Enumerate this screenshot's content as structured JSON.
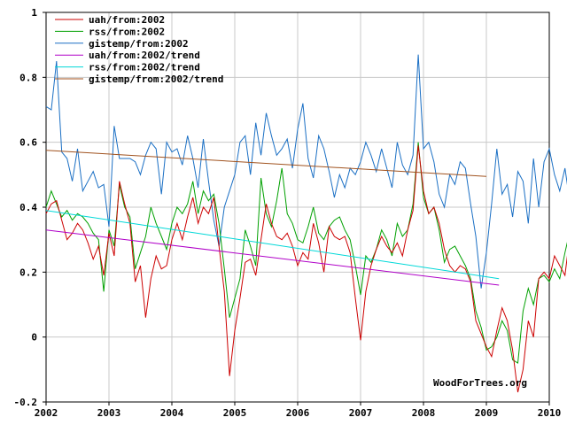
{
  "chart_data": {
    "type": "line",
    "xlim": [
      2002,
      2010
    ],
    "ylim": [
      -0.2,
      1.0
    ],
    "xticks": [
      "2002",
      "2003",
      "2004",
      "2005",
      "2006",
      "2007",
      "2008",
      "2009",
      "2010"
    ],
    "yticks": [
      "-0.2",
      "0",
      "0.2",
      "0.4",
      "0.6",
      "0.8",
      "1"
    ],
    "xtick_values": [
      2002,
      2003,
      2004,
      2005,
      2006,
      2007,
      2008,
      2009,
      2010
    ],
    "ytick_values": [
      -0.2,
      0,
      0.2,
      0.4,
      0.6,
      0.8,
      1.0
    ],
    "grid": true,
    "legend_position": "top-left",
    "credit": "WoodForTrees.org",
    "series": [
      {
        "name": "uah/from:2002",
        "color": "#cc0000",
        "kind": "monthly",
        "x_start": 2002.0,
        "step": 0.08333,
        "values": [
          0.38,
          0.41,
          0.42,
          0.36,
          0.3,
          0.32,
          0.35,
          0.33,
          0.29,
          0.24,
          0.28,
          0.19,
          0.32,
          0.25,
          0.48,
          0.41,
          0.35,
          0.17,
          0.22,
          0.06,
          0.18,
          0.25,
          0.21,
          0.22,
          0.3,
          0.35,
          0.3,
          0.37,
          0.43,
          0.35,
          0.4,
          0.38,
          0.43,
          0.28,
          0.14,
          -0.12,
          0.02,
          0.12,
          0.23,
          0.24,
          0.19,
          0.3,
          0.41,
          0.35,
          0.31,
          0.3,
          0.32,
          0.28,
          0.22,
          0.26,
          0.24,
          0.35,
          0.29,
          0.2,
          0.34,
          0.31,
          0.3,
          0.31,
          0.26,
          0.12,
          -0.01,
          0.14,
          0.22,
          0.27,
          0.31,
          0.28,
          0.26,
          0.29,
          0.25,
          0.33,
          0.39,
          0.59,
          0.45,
          0.38,
          0.4,
          0.35,
          0.27,
          0.22,
          0.2,
          0.22,
          0.21,
          0.17,
          0.05,
          0.01,
          -0.03,
          -0.06,
          0.02,
          0.09,
          0.05,
          -0.04,
          -0.17,
          -0.1,
          0.05,
          0.0,
          0.18,
          0.2,
          0.18,
          0.25,
          0.22,
          0.19,
          0.32,
          0.35,
          0.21
        ]
      },
      {
        "name": "rss/from:2002",
        "color": "#00a000",
        "kind": "monthly",
        "x_start": 2002.0,
        "step": 0.08333,
        "values": [
          0.4,
          0.45,
          0.41,
          0.37,
          0.39,
          0.36,
          0.38,
          0.37,
          0.35,
          0.32,
          0.3,
          0.14,
          0.33,
          0.28,
          0.47,
          0.4,
          0.37,
          0.21,
          0.26,
          0.31,
          0.4,
          0.35,
          0.31,
          0.27,
          0.35,
          0.4,
          0.38,
          0.41,
          0.48,
          0.38,
          0.45,
          0.42,
          0.44,
          0.35,
          0.21,
          0.06,
          0.12,
          0.18,
          0.33,
          0.28,
          0.22,
          0.49,
          0.38,
          0.34,
          0.42,
          0.52,
          0.38,
          0.35,
          0.3,
          0.29,
          0.34,
          0.4,
          0.32,
          0.3,
          0.34,
          0.36,
          0.37,
          0.33,
          0.3,
          0.22,
          0.13,
          0.25,
          0.23,
          0.27,
          0.33,
          0.3,
          0.25,
          0.35,
          0.31,
          0.33,
          0.41,
          0.6,
          0.43,
          0.38,
          0.4,
          0.33,
          0.23,
          0.27,
          0.28,
          0.25,
          0.22,
          0.18,
          0.08,
          0.03,
          -0.04,
          -0.03,
          0.0,
          0.05,
          0.02,
          -0.07,
          -0.08,
          0.08,
          0.15,
          0.1,
          0.18,
          0.19,
          0.17,
          0.21,
          0.18,
          0.26,
          0.33,
          0.25,
          0.2
        ]
      },
      {
        "name": "gistemp/from:2002",
        "color": "#1a6fc4",
        "kind": "monthly",
        "x_start": 2002.0,
        "step": 0.08333,
        "values": [
          0.71,
          0.7,
          0.85,
          0.57,
          0.55,
          0.48,
          0.58,
          0.45,
          0.48,
          0.51,
          0.46,
          0.47,
          0.34,
          0.65,
          0.55,
          0.55,
          0.55,
          0.54,
          0.5,
          0.56,
          0.6,
          0.58,
          0.44,
          0.6,
          0.57,
          0.58,
          0.53,
          0.62,
          0.55,
          0.46,
          0.61,
          0.48,
          0.36,
          0.28,
          0.4,
          0.45,
          0.5,
          0.6,
          0.62,
          0.5,
          0.66,
          0.56,
          0.69,
          0.62,
          0.56,
          0.58,
          0.61,
          0.52,
          0.64,
          0.72,
          0.55,
          0.49,
          0.62,
          0.58,
          0.51,
          0.43,
          0.5,
          0.46,
          0.52,
          0.5,
          0.54,
          0.6,
          0.56,
          0.51,
          0.58,
          0.52,
          0.46,
          0.6,
          0.53,
          0.5,
          0.56,
          0.87,
          0.58,
          0.6,
          0.54,
          0.44,
          0.4,
          0.5,
          0.47,
          0.54,
          0.52,
          0.41,
          0.31,
          0.15,
          0.26,
          0.41,
          0.58,
          0.44,
          0.47,
          0.37,
          0.51,
          0.48,
          0.35,
          0.55,
          0.4,
          0.54,
          0.58,
          0.5,
          0.45,
          0.52,
          0.41
        ]
      },
      {
        "name": "uah/from:2002/trend",
        "color": "#b000c8",
        "kind": "trend",
        "x": [
          2002.0,
          2009.2
        ],
        "values": [
          0.33,
          0.16
        ]
      },
      {
        "name": "rss/from:2002/trend",
        "color": "#00d8d8",
        "kind": "trend",
        "x": [
          2002.0,
          2009.2
        ],
        "values": [
          0.39,
          0.18
        ]
      },
      {
        "name": "gistemp/from:2002/trend",
        "color": "#a0521e",
        "kind": "trend",
        "x": [
          2002.0,
          2009.0
        ],
        "values": [
          0.575,
          0.495
        ]
      }
    ]
  }
}
